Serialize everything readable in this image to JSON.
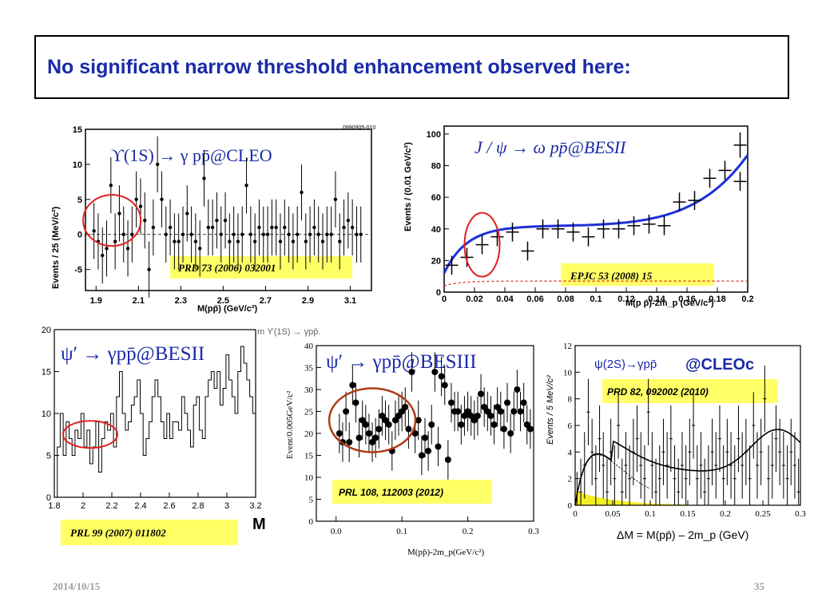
{
  "slide": {
    "title": "No significant narrow threshold enhancement observed here:",
    "date": "2014/10/15",
    "page_number": "35"
  },
  "chart_data": [
    {
      "type": "scatter",
      "panel": "cleo",
      "process": "ϒ(1S) → γ pp̄@CLEO",
      "reference": "PRD 73 (2006) 032001",
      "corner_label": "0990905-010",
      "xlabel": "M(pp̄) (GeV/c²)",
      "ylabel": "Events / 25 (MeV/c²)",
      "xlim": [
        1.85,
        3.2
      ],
      "ylim": [
        -8,
        15
      ],
      "xticks": [
        "1.9",
        "2.1",
        "2.3",
        "2.5",
        "2.7",
        "2.9",
        "3.1"
      ],
      "yticks": [
        "-5",
        "0",
        "5",
        "10",
        "15"
      ],
      "x": [
        1.89,
        1.91,
        1.93,
        1.95,
        1.97,
        1.99,
        2.01,
        2.03,
        2.05,
        2.07,
        2.09,
        2.11,
        2.13,
        2.15,
        2.17,
        2.19,
        2.21,
        2.23,
        2.25,
        2.27,
        2.29,
        2.31,
        2.33,
        2.35,
        2.37,
        2.39,
        2.41,
        2.43,
        2.45,
        2.47,
        2.49,
        2.51,
        2.53,
        2.55,
        2.57,
        2.59,
        2.61,
        2.63,
        2.65,
        2.67,
        2.69,
        2.71,
        2.73,
        2.75,
        2.77,
        2.79,
        2.81,
        2.83,
        2.85,
        2.87,
        2.89,
        2.91,
        2.93,
        2.95,
        2.97,
        2.99,
        3.01,
        3.03,
        3.05,
        3.07,
        3.09,
        3.11,
        3.13,
        3.15
      ],
      "y": [
        0.5,
        -1,
        -3,
        -2,
        7,
        -1,
        3,
        0,
        -2,
        0,
        5,
        4,
        2,
        -5,
        1,
        10,
        5,
        0,
        1,
        -1,
        -1,
        0,
        3,
        0,
        -1,
        -2,
        8,
        1,
        1,
        2,
        0,
        2,
        -1,
        0,
        -1,
        0,
        7,
        0,
        -1,
        1,
        0,
        0,
        1,
        1,
        -1,
        1,
        0,
        -1,
        0,
        6,
        -1,
        0,
        1,
        0,
        -1,
        0,
        0,
        5,
        -1,
        1,
        2,
        1,
        0,
        0
      ],
      "annotations": [
        "red circle near threshold"
      ]
    },
    {
      "type": "scatter",
      "panel": "besii-omega",
      "process": "J / ψ → ω pp̄@BESII",
      "reference": "EPJC 53 (2008) 15",
      "xlabel": "M(p p̄)-2m_p (GeV/c²)",
      "ylabel": "Events / (0.01 GeV/c²)",
      "xlim": [
        0,
        0.2
      ],
      "ylim": [
        0,
        105
      ],
      "xticks": [
        "0",
        "0.02",
        "0.04",
        "0.06",
        "0.08",
        "0.1",
        "0.12",
        "0.14",
        "0.16",
        "0.18",
        "0.2"
      ],
      "yticks": [
        "0",
        "20",
        "40",
        "60",
        "80",
        "100"
      ],
      "x": [
        0.005,
        0.015,
        0.025,
        0.035,
        0.045,
        0.055,
        0.065,
        0.075,
        0.085,
        0.095,
        0.105,
        0.115,
        0.125,
        0.135,
        0.145,
        0.155,
        0.165,
        0.175,
        0.185,
        0.195
      ],
      "y": [
        17,
        22,
        30,
        35,
        38,
        26,
        40,
        40,
        38,
        35,
        40,
        40,
        42,
        43,
        42,
        57,
        58,
        72,
        77,
        70
      ],
      "y_extra": [
        93
      ],
      "annotations": [
        "red ellipse near threshold",
        "blue fit curve",
        "red dashed background"
      ]
    },
    {
      "type": "bar",
      "panel": "besii-gamma",
      "process": "ψ′ → γpp̄@BESII",
      "reference": "PRL 99 (2007) 011802",
      "header_fragment": "m ϒ(1S) → γpp̄.",
      "xlim": [
        1.8,
        3.2
      ],
      "ylim": [
        0,
        20
      ],
      "xticks": [
        "1.8",
        "2",
        "2.2",
        "2.4",
        "2.6",
        "2.8",
        "3",
        "3.2"
      ],
      "yticks": [
        "0",
        "5",
        "10",
        "15",
        "20"
      ],
      "y": [
        0,
        6,
        10,
        5,
        9,
        7,
        5,
        8,
        7,
        10,
        6,
        8,
        4,
        6,
        9,
        3,
        7,
        9,
        8,
        10,
        6,
        12,
        15,
        10,
        8,
        9,
        11,
        12,
        14,
        10,
        5,
        7,
        9,
        12,
        14,
        12,
        9,
        7,
        10,
        7,
        9,
        9,
        8,
        12,
        10,
        8,
        6,
        11,
        12,
        8,
        7,
        12,
        14,
        15,
        13,
        15,
        11,
        13,
        17,
        14,
        12,
        10,
        15,
        18,
        16,
        14,
        12,
        10
      ],
      "annotations": [
        "red circle near threshold"
      ]
    },
    {
      "type": "scatter",
      "panel": "besiii",
      "process": "ψ′ → γpp̄@BESIII",
      "reference": "PRL 108, 112003 (2012)",
      "xlabel": "M(pp̄)-2m_p(GeV/c²)",
      "ylabel": "Event/0.005GeV/c²",
      "xlim": [
        -0.03,
        0.3
      ],
      "ylim": [
        0,
        40
      ],
      "xticks": [
        "0.0",
        "0.1",
        "0.2",
        "0.3"
      ],
      "yticks": [
        "0",
        "5",
        "10",
        "15",
        "20",
        "25",
        "30",
        "35",
        "40"
      ],
      "x": [
        0.005,
        0.01,
        0.015,
        0.02,
        0.025,
        0.03,
        0.035,
        0.04,
        0.045,
        0.05,
        0.055,
        0.06,
        0.065,
        0.07,
        0.075,
        0.08,
        0.085,
        0.09,
        0.095,
        0.1,
        0.105,
        0.11,
        0.115,
        0.12,
        0.125,
        0.13,
        0.135,
        0.14,
        0.145,
        0.15,
        0.155,
        0.16,
        0.165,
        0.17,
        0.175,
        0.18,
        0.185,
        0.19,
        0.195,
        0.2,
        0.205,
        0.21,
        0.215,
        0.22,
        0.225,
        0.23,
        0.235,
        0.24,
        0.245,
        0.25,
        0.255,
        0.26,
        0.265,
        0.27,
        0.275,
        0.28,
        0.285,
        0.29,
        0.295
      ],
      "y": [
        20,
        18,
        25,
        18,
        31,
        27,
        19,
        23,
        22,
        20,
        18,
        19,
        21,
        24,
        23,
        22,
        16,
        23,
        24,
        25,
        26,
        21,
        34,
        20,
        23,
        15,
        19,
        16,
        22,
        34,
        17,
        33,
        31,
        14,
        27,
        25,
        25,
        22,
        24,
        25,
        24,
        23,
        24,
        29,
        26,
        25,
        24,
        22,
        26,
        25,
        21,
        27,
        20,
        25,
        30,
        25,
        27,
        22,
        21
      ],
      "annotations": [
        "dark red ellipse near threshold"
      ]
    },
    {
      "type": "scatter",
      "panel": "cleoc",
      "process": "ψ(2S)→γpp̄",
      "process_suffix": "@CLEOc",
      "reference": "PRD 82, 092002 (2010)",
      "xlabel": "ΔM = M(pp̄) – 2m_p  (GeV)",
      "ylabel": "Events / 5 MeV/c²",
      "xlim": [
        0,
        0.3
      ],
      "ylim": [
        0,
        12
      ],
      "xticks": [
        "0",
        "0.05",
        "0.1",
        "0.15",
        "0.2",
        "0.25",
        "0.3"
      ],
      "yticks": [
        "0",
        "2",
        "4",
        "6",
        "8",
        "10",
        "12"
      ],
      "x": [
        0.0025,
        0.0075,
        0.0125,
        0.0175,
        0.0225,
        0.0275,
        0.0325,
        0.0375,
        0.0425,
        0.0475,
        0.0525,
        0.0575,
        0.0625,
        0.0675,
        0.0725,
        0.0775,
        0.0825,
        0.0875,
        0.0925,
        0.0975,
        0.1025,
        0.1075,
        0.1125,
        0.1175,
        0.1225,
        0.1275,
        0.1325,
        0.1375,
        0.1425,
        0.1475,
        0.1525,
        0.1575,
        0.1625,
        0.1675,
        0.1725,
        0.1775,
        0.1825,
        0.1875,
        0.1925,
        0.1975,
        0.2025,
        0.2075,
        0.2125,
        0.2175,
        0.2225,
        0.2275,
        0.2325,
        0.2375,
        0.2425,
        0.2475,
        0.2525,
        0.2575,
        0.2625,
        0.2675,
        0.2725,
        0.2775,
        0.2825,
        0.2875,
        0.2925,
        0.2975
      ],
      "y": [
        0,
        1,
        3,
        7,
        4,
        2,
        5,
        3,
        1,
        4,
        2,
        6,
        1,
        3,
        2,
        4,
        5,
        3,
        2,
        7,
        3,
        1,
        2,
        4,
        3,
        5,
        2,
        1,
        3,
        2,
        4,
        6,
        2,
        3,
        1,
        2,
        4,
        3,
        5,
        2,
        4,
        3,
        2,
        5,
        3,
        4,
        2,
        6,
        3,
        4,
        8,
        2,
        3,
        5,
        4,
        3,
        2,
        4,
        3,
        1
      ],
      "annotations": [
        "black fit curves",
        "yellow shaded background"
      ]
    }
  ],
  "extra_glyph": "M"
}
